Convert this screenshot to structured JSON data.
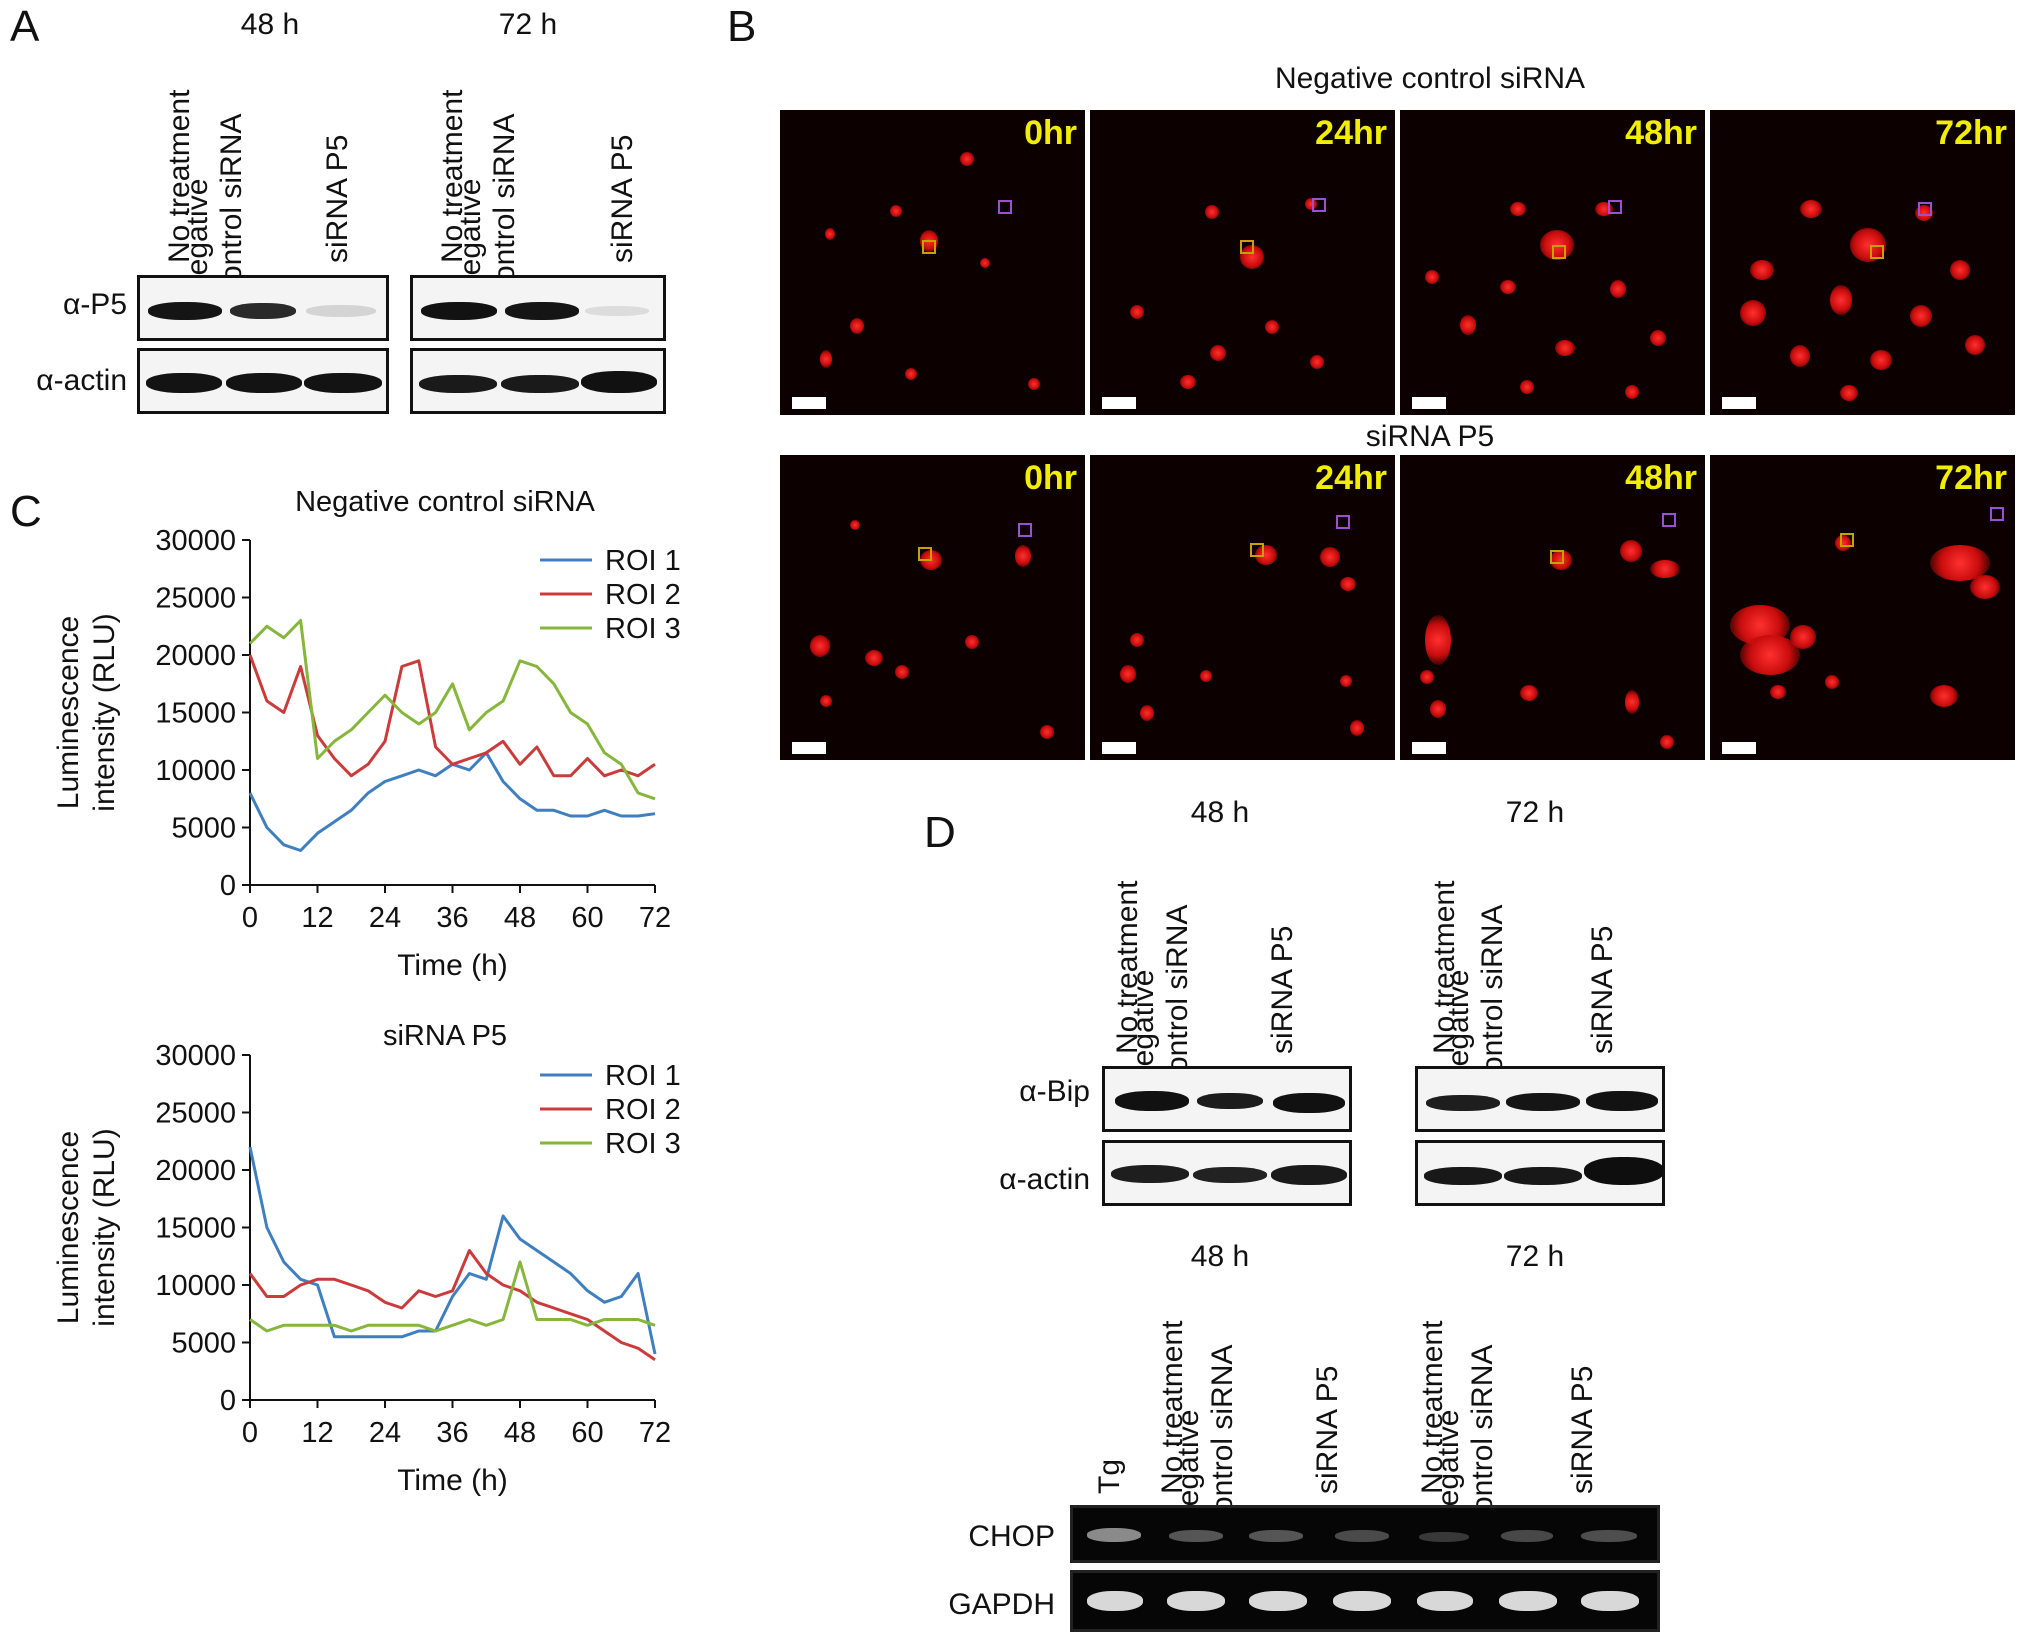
{
  "panels": {
    "a": "A",
    "b": "B",
    "c": "C",
    "d": "D"
  },
  "colors": {
    "roi1": "#3f7fc0",
    "roi2": "#cc3b3b",
    "roi3": "#86b63c",
    "timestamp": "#f2ee00"
  },
  "panel_a": {
    "time_48": "48 h",
    "time_72": "72 h",
    "lanes": [
      "No treatment",
      "Negative\ncontrol siRNA",
      "siRNA P5"
    ],
    "row_p5": "α-P5",
    "row_actin": "α-actin"
  },
  "panel_b": {
    "top_title": "Negative control siRNA",
    "bottom_title": "siRNA P5",
    "timepoints": [
      "0hr",
      "24hr",
      "48hr",
      "72hr"
    ]
  },
  "panel_d": {
    "time_48": "48 h",
    "time_72": "72 h",
    "lanes": [
      "No treatment",
      "Negative\ncontrol siRNA",
      "siRNA P5"
    ],
    "row_bip": "α-Bip",
    "row_actin": "α-actin",
    "pcr_time_48": "48 h",
    "pcr_time_72": "72 h",
    "pcr_tg": "Tg",
    "pcr_lanes": [
      "No treatment",
      "Negative\ncontrol siRNA",
      "siRNA P5"
    ],
    "row_chop": "CHOP",
    "row_gapdh": "GAPDH"
  },
  "chart_data": [
    {
      "type": "line",
      "title": "Negative control siRNA",
      "xlabel": "Time (h)",
      "ylabel": "Luminescence intensity (RLU)",
      "xlim": [
        0,
        72
      ],
      "ylim": [
        0,
        30000
      ],
      "xticks": [
        0,
        12,
        24,
        36,
        48,
        60,
        72
      ],
      "yticks": [
        0,
        5000,
        10000,
        15000,
        20000,
        25000,
        30000
      ],
      "legend": "top-right",
      "x": [
        0,
        3,
        6,
        9,
        12,
        15,
        18,
        21,
        24,
        27,
        30,
        33,
        36,
        39,
        42,
        45,
        48,
        51,
        54,
        57,
        60,
        63,
        66,
        69,
        72
      ],
      "series": [
        {
          "name": "ROI 1",
          "color": "#3f7fc0",
          "values": [
            8000,
            5000,
            3500,
            3000,
            4500,
            5500,
            6500,
            8000,
            9000,
            9500,
            10000,
            9500,
            10500,
            10000,
            11500,
            9000,
            7500,
            6500,
            6500,
            6000,
            6000,
            6500,
            6000,
            6000,
            6200
          ]
        },
        {
          "name": "ROI 2",
          "color": "#cc3b3b",
          "values": [
            20000,
            16000,
            15000,
            19000,
            13000,
            11000,
            9500,
            10500,
            12500,
            19000,
            19500,
            12000,
            10500,
            11000,
            11500,
            12500,
            10500,
            12000,
            9500,
            9500,
            11000,
            9500,
            10000,
            9500,
            10500
          ]
        },
        {
          "name": "ROI 3",
          "color": "#86b63c",
          "values": [
            21000,
            22500,
            21500,
            23000,
            11000,
            12500,
            13500,
            15000,
            16500,
            15000,
            14000,
            15000,
            17500,
            13500,
            15000,
            16000,
            19500,
            19000,
            17500,
            15000,
            14000,
            11500,
            10500,
            8000,
            7500
          ]
        }
      ]
    },
    {
      "type": "line",
      "title": "siRNA P5",
      "xlabel": "Time (h)",
      "ylabel": "Luminescence intensity (RLU)",
      "xlim": [
        0,
        72
      ],
      "ylim": [
        0,
        30000
      ],
      "xticks": [
        0,
        12,
        24,
        36,
        48,
        60,
        72
      ],
      "yticks": [
        0,
        5000,
        10000,
        15000,
        20000,
        25000,
        30000
      ],
      "legend": "top-right",
      "x": [
        0,
        3,
        6,
        9,
        12,
        15,
        18,
        21,
        24,
        27,
        30,
        33,
        36,
        39,
        42,
        45,
        48,
        51,
        54,
        57,
        60,
        63,
        66,
        69,
        72
      ],
      "series": [
        {
          "name": "ROI 1",
          "color": "#3f7fc0",
          "values": [
            22000,
            15000,
            12000,
            10500,
            10000,
            5500,
            5500,
            5500,
            5500,
            5500,
            6000,
            6000,
            9000,
            11000,
            10500,
            16000,
            14000,
            13000,
            12000,
            11000,
            9500,
            8500,
            9000,
            11000,
            4000
          ]
        },
        {
          "name": "ROI 2",
          "color": "#cc3b3b",
          "values": [
            11000,
            9000,
            9000,
            10000,
            10500,
            10500,
            10000,
            9500,
            8500,
            8000,
            9500,
            9000,
            9500,
            13000,
            11000,
            10000,
            9500,
            8500,
            8000,
            7500,
            7000,
            6000,
            5000,
            4500,
            3500
          ]
        },
        {
          "name": "ROI 3",
          "color": "#86b63c",
          "values": [
            7000,
            6000,
            6500,
            6500,
            6500,
            6500,
            6000,
            6500,
            6500,
            6500,
            6500,
            6000,
            6500,
            7000,
            6500,
            7000,
            12000,
            7000,
            7000,
            7000,
            6500,
            7000,
            7000,
            7000,
            6500
          ]
        }
      ]
    }
  ]
}
